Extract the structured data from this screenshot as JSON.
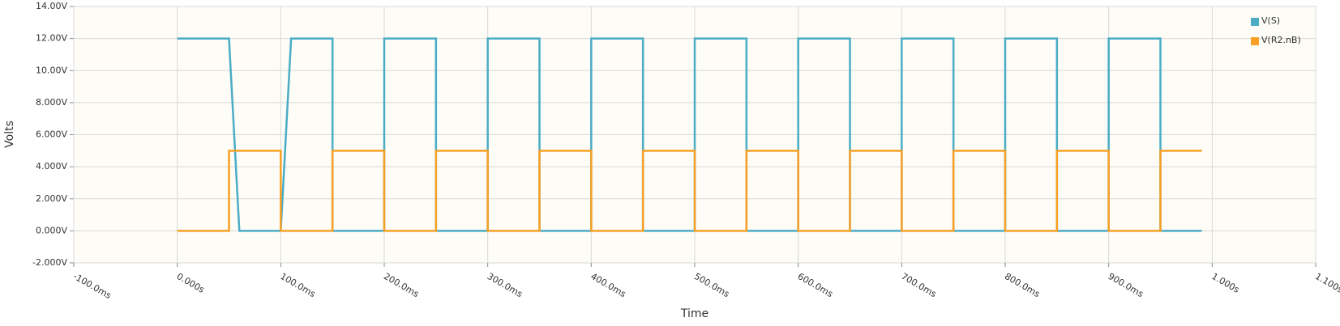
{
  "chart_data": {
    "type": "line",
    "x_label": "Time",
    "y_label": "Volts",
    "xlim": [
      -100,
      1100
    ],
    "xticks": [
      {
        "value": -100,
        "label": "-100.0ms"
      },
      {
        "value": 0,
        "label": "0.000s"
      },
      {
        "value": 100,
        "label": "100.0ms"
      },
      {
        "value": 200,
        "label": "200.0ms"
      },
      {
        "value": 300,
        "label": "300.0ms"
      },
      {
        "value": 400,
        "label": "400.0ms"
      },
      {
        "value": 500,
        "label": "500.0ms"
      },
      {
        "value": 600,
        "label": "600.0ms"
      },
      {
        "value": 700,
        "label": "700.0ms"
      },
      {
        "value": 800,
        "label": "800.0ms"
      },
      {
        "value": 900,
        "label": "900.0ms"
      },
      {
        "value": 1000,
        "label": "1.000s"
      },
      {
        "value": 1100,
        "label": "1.100s"
      }
    ],
    "ylim": [
      -2,
      14
    ],
    "yticks": [
      {
        "value": -2,
        "label": "-2.000V"
      },
      {
        "value": 0,
        "label": "0.000V"
      },
      {
        "value": 2,
        "label": "2.000V"
      },
      {
        "value": 4,
        "label": "4.000V"
      },
      {
        "value": 6,
        "label": "6.000V"
      },
      {
        "value": 8,
        "label": "8.000V"
      },
      {
        "value": 10,
        "label": "10.00V"
      },
      {
        "value": 12,
        "label": "12.00V"
      },
      {
        "value": 14,
        "label": "14.00V"
      }
    ],
    "grid": true,
    "legend": "upper right",
    "series": [
      {
        "name": "V(S)",
        "color": "#4bacc6",
        "x": [
          0,
          50,
          60,
          100,
          110,
          150,
          150,
          200,
          200,
          250,
          250,
          300,
          300,
          350,
          350,
          400,
          400,
          450,
          450,
          500,
          500,
          550,
          550,
          600,
          600,
          650,
          650,
          700,
          700,
          750,
          750,
          800,
          800,
          850,
          850,
          900,
          900,
          950,
          950,
          990
        ],
        "values": [
          12,
          12,
          0,
          0,
          12,
          12,
          0,
          0,
          12,
          12,
          0,
          0,
          12,
          12,
          0,
          0,
          12,
          12,
          0,
          0,
          12,
          12,
          0,
          0,
          12,
          12,
          0,
          0,
          12,
          12,
          0,
          0,
          12,
          12,
          0,
          0,
          12,
          12,
          0,
          0
        ]
      },
      {
        "name": "V(R2.nB)",
        "color": "#f7a025",
        "x": [
          0,
          50,
          50,
          100,
          100,
          150,
          150,
          200,
          200,
          250,
          250,
          300,
          300,
          350,
          350,
          400,
          400,
          450,
          450,
          500,
          500,
          550,
          550,
          600,
          600,
          650,
          650,
          700,
          700,
          750,
          750,
          800,
          800,
          850,
          850,
          900,
          900,
          950,
          950,
          990
        ],
        "values": [
          0,
          0,
          5,
          5,
          0,
          0,
          5,
          5,
          0,
          0,
          5,
          5,
          0,
          0,
          5,
          5,
          0,
          0,
          5,
          5,
          0,
          0,
          5,
          5,
          0,
          0,
          5,
          5,
          0,
          0,
          5,
          5,
          0,
          0,
          5,
          5,
          0,
          0,
          5,
          5
        ]
      }
    ]
  }
}
